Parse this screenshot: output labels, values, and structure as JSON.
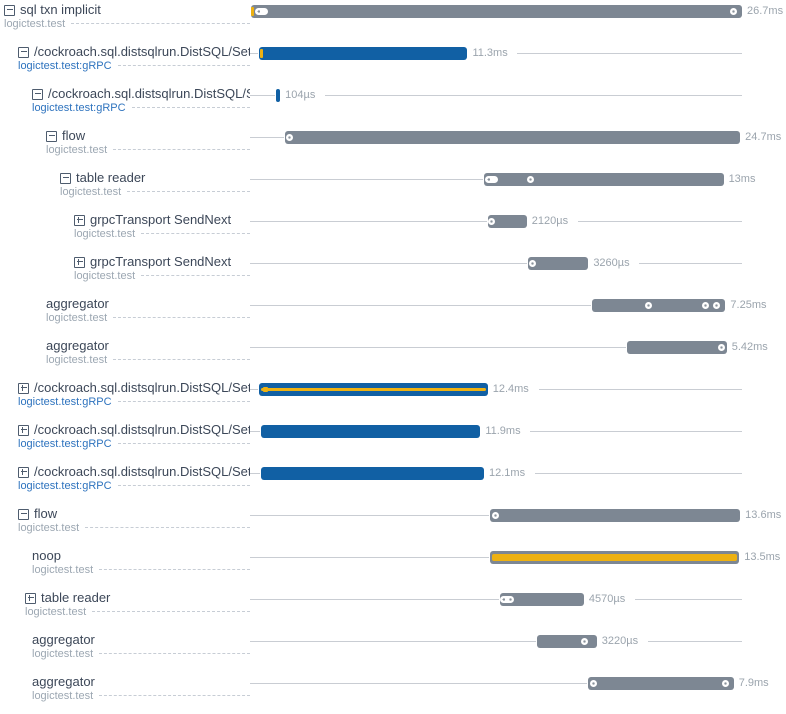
{
  "app": {
    "name": "trace-span-waterfall"
  },
  "colors": {
    "bar_gray": "#7D8793",
    "bar_blue": "#1160A4",
    "highlight_yellow": "#EDB112",
    "title_text": "#3C4758",
    "subtitle_text": "#9CA7B2",
    "subtitle_link_text": "#2E73BE",
    "duration_text": "#9BA4AD",
    "baseline": "#C9CDD3"
  },
  "chart_data": {
    "type": "gantt",
    "unit": "ms",
    "total_ms": 26.7,
    "spans": [
      {
        "title": "sql txn implicit",
        "subtitle": "logictest.test",
        "subtitle_is_link": false,
        "icon": "minus",
        "depth": 0,
        "start_ms": 0.05,
        "duration_ms": 26.7,
        "duration_label": "26.7ms",
        "color": "gray",
        "stripe": null,
        "markers": [
          {
            "type": "ytick",
            "ms": 0.12
          },
          {
            "type": "pill",
            "ms": 0.62
          },
          {
            "type": "dot",
            "ms": 26.25
          }
        ]
      },
      {
        "title": "/cockroach.sql.distsqlrun.DistSQL/Set",
        "subtitle": "logictest.test:gRPC",
        "subtitle_is_link": true,
        "icon": "minus",
        "depth": 1,
        "start_ms": 0.5,
        "duration_ms": 11.3,
        "duration_label": "11.3ms",
        "color": "blue",
        "stripe": null,
        "markers": [
          {
            "type": "ytick",
            "ms": 0.55
          }
        ]
      },
      {
        "title": "/cockroach.sql.distsqlrun.DistSQL/S",
        "subtitle": "logictest.test:gRPC",
        "subtitle_is_link": true,
        "icon": "minus",
        "depth": 2,
        "start_ms": 1.42,
        "duration_ms": 0.104,
        "duration_label": "104µs",
        "color": "blue",
        "stripe": null,
        "markers": []
      },
      {
        "title": "flow",
        "subtitle": "logictest.test",
        "subtitle_is_link": false,
        "icon": "minus",
        "depth": 3,
        "start_ms": 1.9,
        "duration_ms": 24.7,
        "duration_label": "24.7ms",
        "color": "gray",
        "stripe": null,
        "markers": [
          {
            "type": "dot",
            "ms": 2.15
          }
        ]
      },
      {
        "title": "table reader",
        "subtitle": "logictest.test",
        "subtitle_is_link": false,
        "icon": "minus",
        "depth": 4,
        "start_ms": 12.7,
        "duration_ms": 13.0,
        "duration_label": "13ms",
        "color": "gray",
        "stripe": null,
        "markers": [
          {
            "type": "pill",
            "ms": 12.95
          },
          {
            "type": "dot",
            "ms": 15.2
          }
        ]
      },
      {
        "title": "grpcTransport SendNext",
        "subtitle": "logictest.test",
        "subtitle_is_link": false,
        "icon": "plus",
        "depth": 5,
        "start_ms": 12.9,
        "duration_ms": 2.12,
        "duration_label": "2120µs",
        "color": "gray",
        "stripe": null,
        "markers": [
          {
            "type": "dot",
            "ms": 13.1
          }
        ]
      },
      {
        "title": "grpcTransport SendNext",
        "subtitle": "logictest.test",
        "subtitle_is_link": false,
        "icon": "plus",
        "depth": 5,
        "start_ms": 15.1,
        "duration_ms": 3.26,
        "duration_label": "3260µs",
        "color": "gray",
        "stripe": null,
        "markers": [
          {
            "type": "dot",
            "ms": 15.3
          }
        ]
      },
      {
        "title": "aggregator",
        "subtitle": "logictest.test",
        "subtitle_is_link": false,
        "icon": null,
        "depth": 3,
        "start_ms": 18.55,
        "duration_ms": 7.25,
        "duration_label": "7.25ms",
        "color": "gray",
        "stripe": null,
        "markers": [
          {
            "type": "dot",
            "ms": 21.6
          },
          {
            "type": "dot",
            "ms": 24.7
          },
          {
            "type": "dot",
            "ms": 25.3
          }
        ]
      },
      {
        "title": "aggregator",
        "subtitle": "logictest.test",
        "subtitle_is_link": false,
        "icon": null,
        "depth": 3,
        "start_ms": 20.45,
        "duration_ms": 5.42,
        "duration_label": "5.42ms",
        "color": "gray",
        "stripe": null,
        "markers": [
          {
            "type": "dot",
            "ms": 25.6
          }
        ]
      },
      {
        "title": "/cockroach.sql.distsqlrun.DistSQL/Set",
        "subtitle": "logictest.test:gRPC",
        "subtitle_is_link": true,
        "icon": "plus",
        "depth": 1,
        "start_ms": 0.5,
        "duration_ms": 12.4,
        "duration_label": "12.4ms",
        "color": "blue",
        "stripe": "thin",
        "markers": [
          {
            "type": "ysquare",
            "ms": 0.85
          }
        ]
      },
      {
        "title": "/cockroach.sql.distsqlrun.DistSQL/Set",
        "subtitle": "logictest.test:gRPC",
        "subtitle_is_link": true,
        "icon": "plus",
        "depth": 1,
        "start_ms": 0.6,
        "duration_ms": 11.9,
        "duration_label": "11.9ms",
        "color": "blue",
        "stripe": null,
        "markers": []
      },
      {
        "title": "/cockroach.sql.distsqlrun.DistSQL/Set",
        "subtitle": "logictest.test:gRPC",
        "subtitle_is_link": true,
        "icon": "plus",
        "depth": 1,
        "start_ms": 0.6,
        "duration_ms": 12.1,
        "duration_label": "12.1ms",
        "color": "blue",
        "stripe": null,
        "markers": []
      },
      {
        "title": "flow",
        "subtitle": "logictest.test",
        "subtitle_is_link": false,
        "icon": "minus",
        "depth": 1,
        "start_ms": 13.0,
        "duration_ms": 13.6,
        "duration_label": "13.6ms",
        "color": "gray",
        "stripe": null,
        "markers": [
          {
            "type": "dot",
            "ms": 13.3
          }
        ]
      },
      {
        "title": "noop",
        "subtitle": "logictest.test",
        "subtitle_is_link": false,
        "icon": null,
        "depth": 2,
        "start_ms": 13.05,
        "duration_ms": 13.5,
        "duration_label": "13.5ms",
        "color": "gray",
        "stripe": "thick",
        "markers": []
      },
      {
        "title": "table reader",
        "subtitle": "logictest.test",
        "subtitle_is_link": false,
        "icon": "plus",
        "depth": 1.5,
        "start_ms": 13.55,
        "duration_ms": 4.57,
        "duration_label": "4570µs",
        "color": "gray",
        "stripe": null,
        "markers": [
          {
            "type": "pill",
            "ms": 13.8
          },
          {
            "type": "dot",
            "ms": 14.15
          }
        ]
      },
      {
        "title": "aggregator",
        "subtitle": "logictest.test",
        "subtitle_is_link": false,
        "icon": null,
        "depth": 2,
        "start_ms": 15.6,
        "duration_ms": 3.22,
        "duration_label": "3220µs",
        "color": "gray",
        "stripe": null,
        "markers": [
          {
            "type": "dot",
            "ms": 18.15
          }
        ]
      },
      {
        "title": "aggregator",
        "subtitle": "logictest.test",
        "subtitle_is_link": false,
        "icon": null,
        "depth": 2,
        "start_ms": 18.35,
        "duration_ms": 7.9,
        "duration_label": "7.9ms",
        "color": "gray",
        "stripe": null,
        "markers": [
          {
            "type": "dot",
            "ms": 18.65
          },
          {
            "type": "dot",
            "ms": 25.8
          }
        ]
      }
    ]
  }
}
